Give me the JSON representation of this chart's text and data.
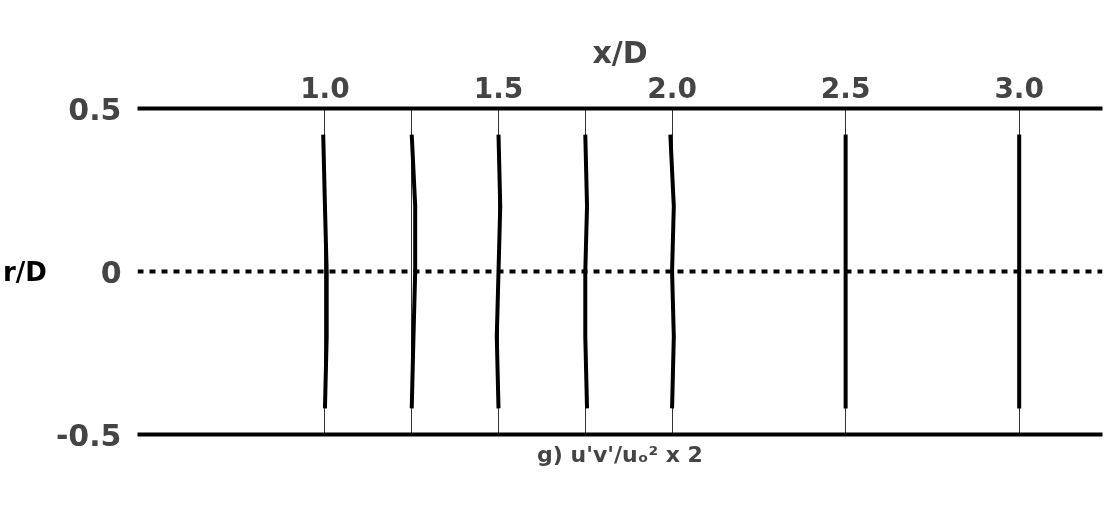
{
  "chart_data": {
    "type": "line",
    "xlabel": "x/D",
    "ylabel": "r/D",
    "xlim": [
      0.46,
      3.24
    ],
    "ylim": [
      -0.5,
      0.5
    ],
    "xticks": [
      {
        "value": 1.0,
        "label": "1.0"
      },
      {
        "value": 1.25,
        "label": null
      },
      {
        "value": 1.5,
        "label": "1.5"
      },
      {
        "value": 1.75,
        "label": null
      },
      {
        "value": 2.0,
        "label": "2.0"
      },
      {
        "value": 2.5,
        "label": "2.5"
      },
      {
        "value": 3.0,
        "label": "3.0"
      }
    ],
    "yticks": [
      -0.5,
      0,
      0.5
    ],
    "grid": "x",
    "ref_lines": [
      {
        "axis": "y",
        "value": 0,
        "line_style": "dashed",
        "color": "#000000"
      }
    ],
    "annotations": [
      "g) u'v'/uₒ² x 2"
    ],
    "line_style": "solid",
    "marker": "none",
    "series": [
      {
        "color": "#000000",
        "x": [
          0.995,
          1.0,
          1.005,
          1.005,
          1.0
        ],
        "values": [
          0.42,
          0.2,
          0.0,
          -0.2,
          -0.42
        ]
      },
      {
        "color": "#000000",
        "x": [
          1.25,
          1.26,
          1.26,
          1.255,
          1.25
        ],
        "values": [
          0.42,
          0.2,
          0.0,
          -0.2,
          -0.42
        ]
      },
      {
        "color": "#000000",
        "x": [
          1.5,
          1.505,
          1.5,
          1.495,
          1.5
        ],
        "values": [
          0.42,
          0.2,
          0.0,
          -0.2,
          -0.42
        ]
      },
      {
        "color": "#000000",
        "x": [
          1.75,
          1.755,
          1.75,
          1.75,
          1.755
        ],
        "values": [
          0.42,
          0.2,
          0.0,
          -0.2,
          -0.42
        ]
      },
      {
        "color": "#000000",
        "x": [
          1.995,
          2.005,
          2.0,
          2.005,
          2.0
        ],
        "values": [
          0.42,
          0.2,
          0.0,
          -0.2,
          -0.42
        ]
      },
      {
        "color": "#000000",
        "x": [
          2.5,
          2.5,
          2.5,
          2.5,
          2.5
        ],
        "values": [
          0.42,
          0.2,
          0.0,
          -0.2,
          -0.42
        ]
      },
      {
        "color": "#000000",
        "x": [
          3.0,
          3.0,
          3.0,
          3.0,
          3.0
        ],
        "values": [
          0.42,
          0.2,
          0.0,
          -0.2,
          -0.42
        ]
      }
    ]
  }
}
